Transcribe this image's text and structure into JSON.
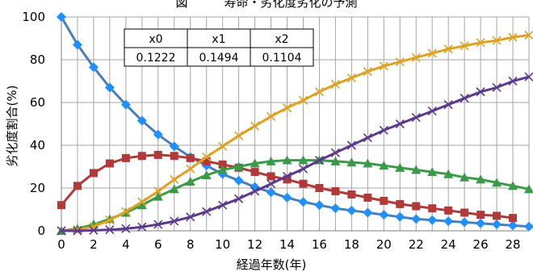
{
  "chart_data": {
    "type": "line",
    "title": "図　　　寿命・劣化度劣化の予測",
    "xlabel": "経過年数(年)",
    "ylabel": "劣化度割合(%)",
    "xlim": [
      0,
      29
    ],
    "ylim": [
      0,
      100
    ],
    "xticks": [
      0,
      2,
      4,
      6,
      8,
      10,
      12,
      14,
      16,
      18,
      20,
      22,
      24,
      26,
      28
    ],
    "yticks": [
      0,
      20,
      40,
      60,
      80,
      100
    ],
    "grid": true,
    "legend": "none",
    "param_table": {
      "headers": [
        "x0",
        "x1",
        "x2"
      ],
      "values": [
        "0.1222",
        "0.1494",
        "0.1104"
      ]
    },
    "series": [
      {
        "color": "#4a7ebb",
        "marker": "diamond",
        "marker_color": "#1e90ff",
        "x": [
          0,
          1,
          2,
          3,
          4,
          5,
          6,
          7,
          8,
          9,
          10,
          11,
          12,
          13,
          14,
          15,
          16,
          17,
          18,
          19,
          20,
          21,
          22,
          23,
          24,
          25,
          26,
          27,
          28,
          29
        ],
        "values": [
          100,
          87,
          76.5,
          67,
          59,
          51.5,
          45,
          39.5,
          34.5,
          30.5,
          26.5,
          23.5,
          20.5,
          18,
          15.5,
          13.5,
          12,
          10.5,
          9.5,
          8.5,
          7.5,
          6.5,
          5.5,
          5,
          4.5,
          4,
          3.5,
          3,
          2.5,
          2
        ]
      },
      {
        "color": "#b03a3a",
        "marker": "square",
        "marker_color": "#b03a3a",
        "x": [
          0,
          1,
          2,
          3,
          4,
          5,
          6,
          7,
          8,
          9,
          10,
          11,
          12,
          13,
          14,
          15,
          16,
          17,
          18,
          19,
          20,
          21,
          22,
          23,
          24,
          25,
          26,
          27,
          28
        ],
        "values": [
          12,
          21,
          27,
          31.5,
          34,
          35,
          35.5,
          35,
          34,
          32.5,
          31,
          29.5,
          27.5,
          25.5,
          24,
          22,
          20,
          18.5,
          17,
          15.5,
          14,
          12.5,
          11.5,
          10.5,
          9.5,
          8.5,
          7.5,
          7,
          6
        ]
      },
      {
        "color": "#3a9a48",
        "marker": "triangle",
        "marker_color": "#3a9a48",
        "x": [
          0,
          1,
          2,
          3,
          4,
          5,
          6,
          7,
          8,
          9,
          10,
          11,
          12,
          13,
          14,
          15,
          16,
          17,
          18,
          19,
          20,
          21,
          22,
          23,
          24,
          25,
          26,
          27,
          28,
          29
        ],
        "values": [
          0,
          1,
          3,
          5.5,
          8.5,
          12,
          16,
          19.5,
          23,
          26,
          28.5,
          30,
          31.5,
          32.5,
          33,
          33,
          33,
          32.5,
          32,
          31.5,
          30.5,
          29.5,
          28.5,
          27.5,
          26.5,
          25,
          24,
          22.5,
          21,
          19.5
        ]
      },
      {
        "color": "#e0a020",
        "marker": "x",
        "marker_color": "#e0a020",
        "x": [
          0,
          1,
          2,
          3,
          4,
          5,
          6,
          7,
          8,
          9,
          10,
          11,
          12,
          13,
          14,
          15,
          16,
          17,
          18,
          19,
          20,
          21,
          22,
          23,
          24,
          25,
          26,
          27,
          28,
          29
        ],
        "values": [
          0,
          0.5,
          2,
          5,
          9,
          13.5,
          18.5,
          24,
          29,
          34.5,
          39.5,
          44.5,
          49,
          53.5,
          57.5,
          61,
          65,
          68.5,
          71.5,
          74.5,
          77,
          79,
          81,
          83,
          85,
          86.5,
          88,
          89,
          90.5,
          91.5
        ]
      },
      {
        "color": "#5b3a8c",
        "marker": "x",
        "marker_color": "#5b3a8c",
        "x": [
          0,
          1,
          2,
          3,
          4,
          5,
          6,
          7,
          8,
          9,
          10,
          11,
          12,
          13,
          14,
          15,
          16,
          17,
          18,
          19,
          20,
          21,
          22,
          23,
          24,
          25,
          26,
          27,
          28,
          29
        ],
        "values": [
          0,
          0,
          0.2,
          0.5,
          1,
          1.8,
          3,
          4.5,
          6.5,
          9,
          12,
          15,
          18.5,
          22,
          25.5,
          29,
          33,
          36.5,
          40,
          43.5,
          47,
          50,
          53,
          56,
          59,
          62,
          65,
          67,
          70,
          72
        ]
      }
    ]
  }
}
